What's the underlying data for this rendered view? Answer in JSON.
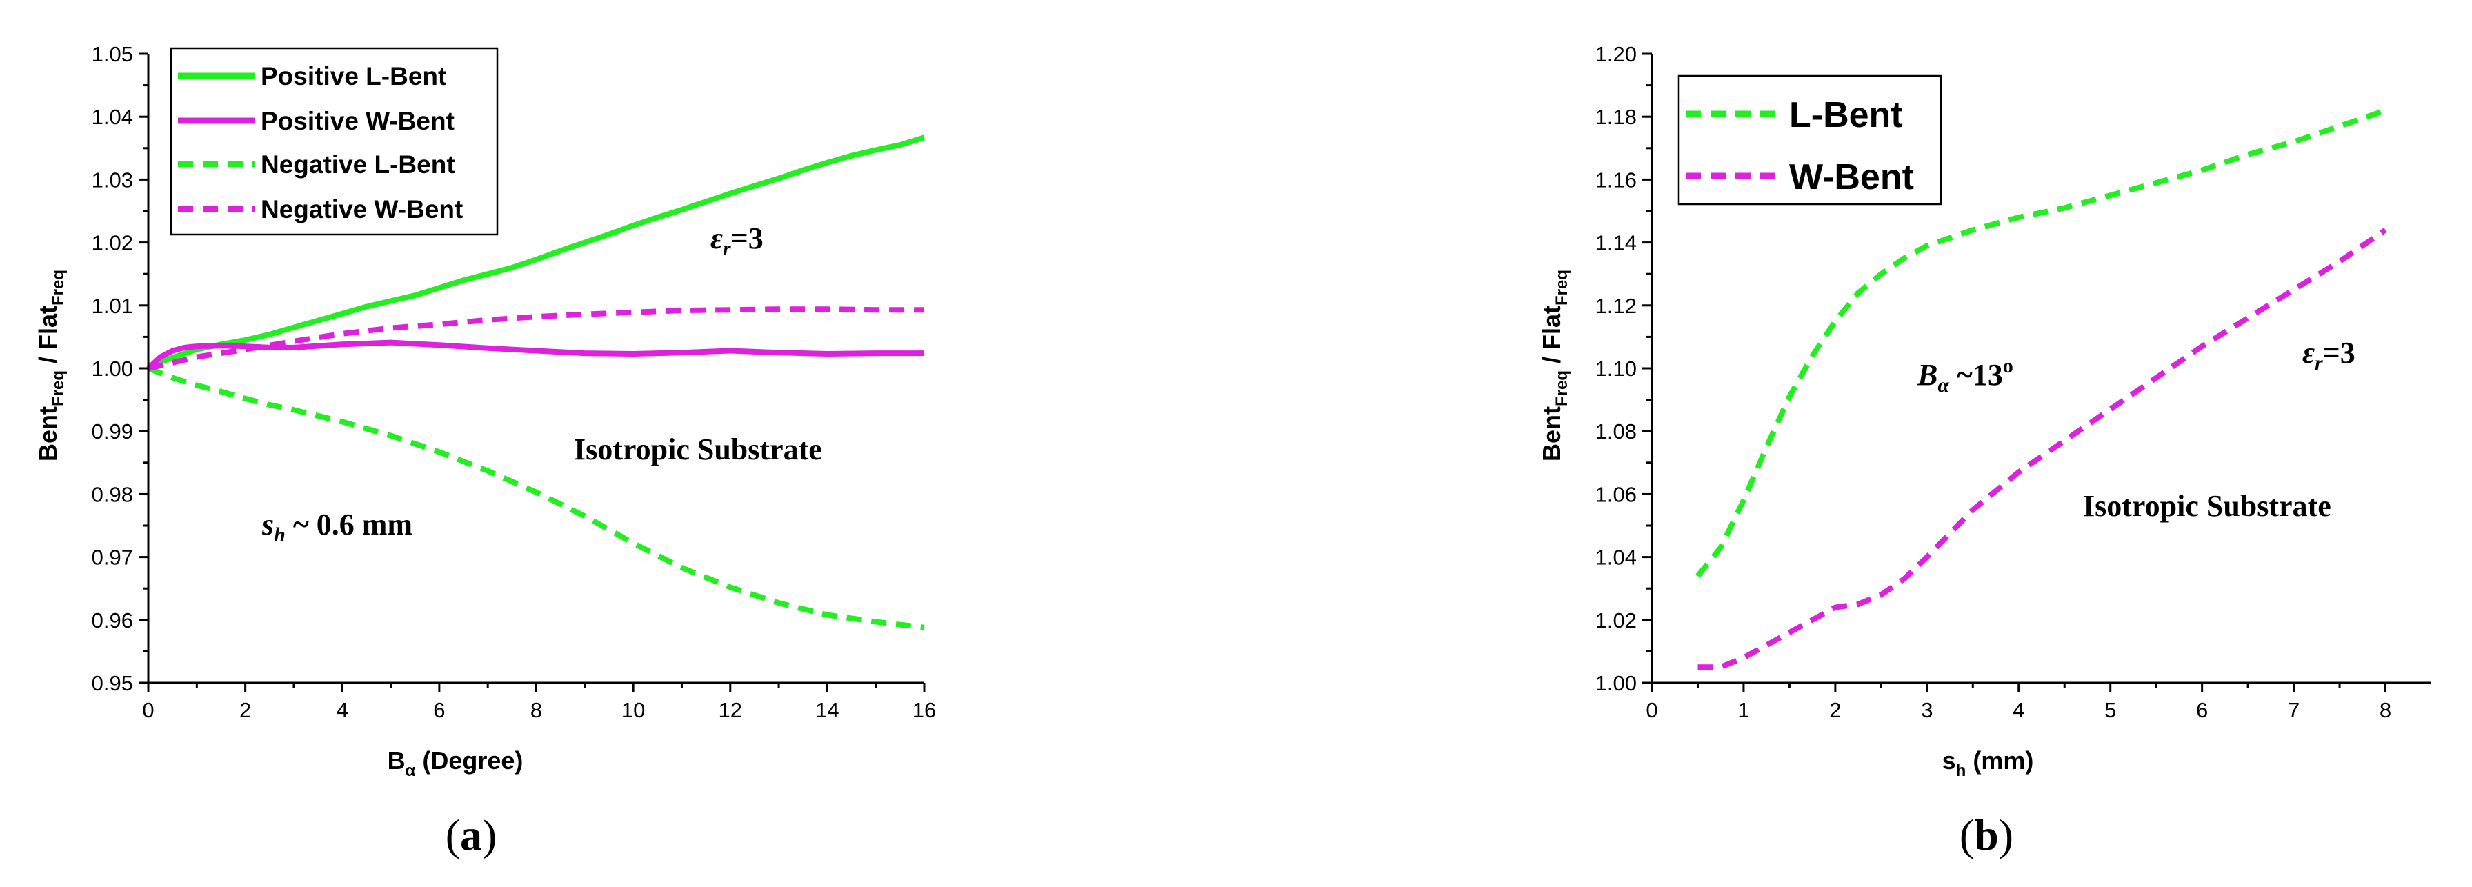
{
  "chart_data": [
    {
      "type": "line",
      "panel_label_open": "(",
      "panel_label_letter": "a",
      "panel_label_close": ")",
      "xlabel_main": "B",
      "xlabel_sub": "α",
      "xlabel_rest": " (Degree)",
      "ylabel_main_1": "Bent",
      "ylabel_sub_1": "Freq",
      "ylabel_mid": " / Flat",
      "ylabel_sub_2": "Freq",
      "xlim": [
        0,
        16
      ],
      "ylim": [
        0.95,
        1.05
      ],
      "x_ticks": [
        "0",
        "2",
        "4",
        "6",
        "8",
        "10",
        "12",
        "14",
        "16"
      ],
      "y_ticks": [
        "0.95",
        "0.96",
        "0.97",
        "0.98",
        "0.99",
        "1.00",
        "1.01",
        "1.02",
        "1.03",
        "1.04",
        "1.05"
      ],
      "grid": false,
      "legend_position": "top-left",
      "annotations": {
        "eps_symbol": "ε",
        "eps_sub": "r",
        "eps_value": "=3",
        "substrate": "Isotropic Substrate",
        "sh_symbol": "s",
        "sh_sub": "h",
        "sh_value": " ~ 0.6 mm"
      },
      "series": [
        {
          "name": "Positive L-Bent",
          "color": "#22ee22",
          "dash": "solid",
          "x": [
            0,
            0.25,
            0.5,
            1,
            1.5,
            2,
            2.5,
            3,
            3.5,
            4,
            4.5,
            5,
            5.5,
            6,
            6.5,
            7,
            7.5,
            8,
            8.5,
            9,
            9.5,
            10,
            10.5,
            11,
            11.5,
            12,
            12.5,
            13,
            13.5,
            14,
            14.5,
            15,
            15.5,
            16
          ],
          "y": [
            1.0,
            1.001,
            1.0017,
            1.003,
            1.0038,
            1.0045,
            1.0054,
            1.0065,
            1.0076,
            1.0087,
            1.0098,
            1.0107,
            1.0116,
            1.0128,
            1.014,
            1.015,
            1.016,
            1.0173,
            1.0187,
            1.02,
            1.0213,
            1.0227,
            1.024,
            1.0252,
            1.0265,
            1.0278,
            1.029,
            1.0302,
            1.0315,
            1.0327,
            1.0338,
            1.0347,
            1.0355,
            1.0367
          ]
        },
        {
          "name": "Positive W-Bent",
          "color": "#dd22dd",
          "dash": "solid",
          "x": [
            0,
            0.25,
            0.5,
            0.75,
            1,
            1.5,
            2,
            2.5,
            3,
            4,
            5,
            6,
            7,
            8,
            9,
            10,
            11,
            12,
            13,
            14,
            15,
            16
          ],
          "y": [
            1.0,
            1.0018,
            1.0028,
            1.0033,
            1.0035,
            1.0036,
            1.0035,
            1.0033,
            1.0033,
            1.0038,
            1.0041,
            1.0037,
            1.0032,
            1.0028,
            1.0024,
            1.0023,
            1.0025,
            1.0028,
            1.0025,
            1.0023,
            1.0024,
            1.0024
          ]
        },
        {
          "name": "Negative L-Bent",
          "color": "#22ee22",
          "dash": "dashed",
          "x": [
            0,
            0.5,
            1,
            1.5,
            2,
            2.5,
            3,
            4,
            5,
            6,
            7,
            8,
            9,
            10,
            11,
            12,
            13,
            14,
            15,
            16
          ],
          "y": [
            1.0,
            0.9985,
            0.9973,
            0.9963,
            0.9952,
            0.9942,
            0.9934,
            0.9915,
            0.9893,
            0.9867,
            0.9837,
            0.9803,
            0.9765,
            0.9722,
            0.9683,
            0.9652,
            0.9627,
            0.9608,
            0.9597,
            0.9588
          ]
        },
        {
          "name": "Negative W-Bent",
          "color": "#dd22dd",
          "dash": "dashed",
          "x": [
            0,
            1,
            2,
            3,
            4,
            5,
            6,
            7,
            8,
            9,
            10,
            11,
            12,
            13,
            14,
            15,
            16
          ],
          "y": [
            1.0,
            1.0018,
            1.003,
            1.0043,
            1.0055,
            1.0064,
            1.007,
            1.0077,
            1.0082,
            1.0086,
            1.0089,
            1.0092,
            1.0093,
            1.0094,
            1.0094,
            1.0093,
            1.0093
          ]
        }
      ]
    },
    {
      "type": "line",
      "panel_label_open": "(",
      "panel_label_letter": "b",
      "panel_label_close": ")",
      "xlabel_main": "s",
      "xlabel_sub": "h",
      "xlabel_rest": " (mm)",
      "ylabel_main_1": "Bent",
      "ylabel_sub_1": "Freq",
      "ylabel_mid": " / Flat",
      "ylabel_sub_2": "Freq",
      "xlim": [
        0,
        8.5
      ],
      "ylim": [
        1.0,
        1.2
      ],
      "x_ticks": [
        "0",
        "1",
        "2",
        "3",
        "4",
        "5",
        "6",
        "7",
        "8"
      ],
      "y_ticks": [
        "1.00",
        "1.02",
        "1.04",
        "1.06",
        "1.08",
        "1.10",
        "1.12",
        "1.14",
        "1.16",
        "1.18",
        "1.20"
      ],
      "grid": false,
      "legend_position": "top-left",
      "annotations": {
        "ba_symbol": "B",
        "ba_sub": "α",
        "ba_value": " ~13",
        "ba_sup": "o",
        "eps_symbol": "ε",
        "eps_sub": "r",
        "eps_value": "=3",
        "substrate": "Isotropic Substrate"
      },
      "series": [
        {
          "name": "L-Bent",
          "color": "#22ee22",
          "dash": "dashed",
          "x": [
            0.5,
            0.75,
            1,
            1.25,
            1.5,
            1.75,
            2,
            2.25,
            2.5,
            2.75,
            3,
            3.5,
            4,
            4.5,
            5,
            5.5,
            6,
            6.5,
            7,
            7.5,
            8
          ],
          "y": [
            1.034,
            1.043,
            1.058,
            1.075,
            1.091,
            1.104,
            1.115,
            1.124,
            1.13,
            1.135,
            1.139,
            1.144,
            1.148,
            1.151,
            1.155,
            1.159,
            1.163,
            1.168,
            1.172,
            1.177,
            1.182
          ]
        },
        {
          "name": "W-Bent",
          "color": "#dd22dd",
          "dash": "dashed",
          "x": [
            0.5,
            0.75,
            1,
            1.25,
            1.5,
            1.75,
            2,
            2.25,
            2.5,
            2.75,
            3,
            3.5,
            4,
            4.5,
            5,
            5.5,
            6,
            6.5,
            7,
            7.5,
            8
          ],
          "y": [
            1.005,
            1.005,
            1.008,
            1.012,
            1.016,
            1.02,
            1.024,
            1.025,
            1.028,
            1.033,
            1.04,
            1.055,
            1.067,
            1.077,
            1.087,
            1.097,
            1.107,
            1.116,
            1.125,
            1.134,
            1.144
          ]
        }
      ]
    }
  ]
}
